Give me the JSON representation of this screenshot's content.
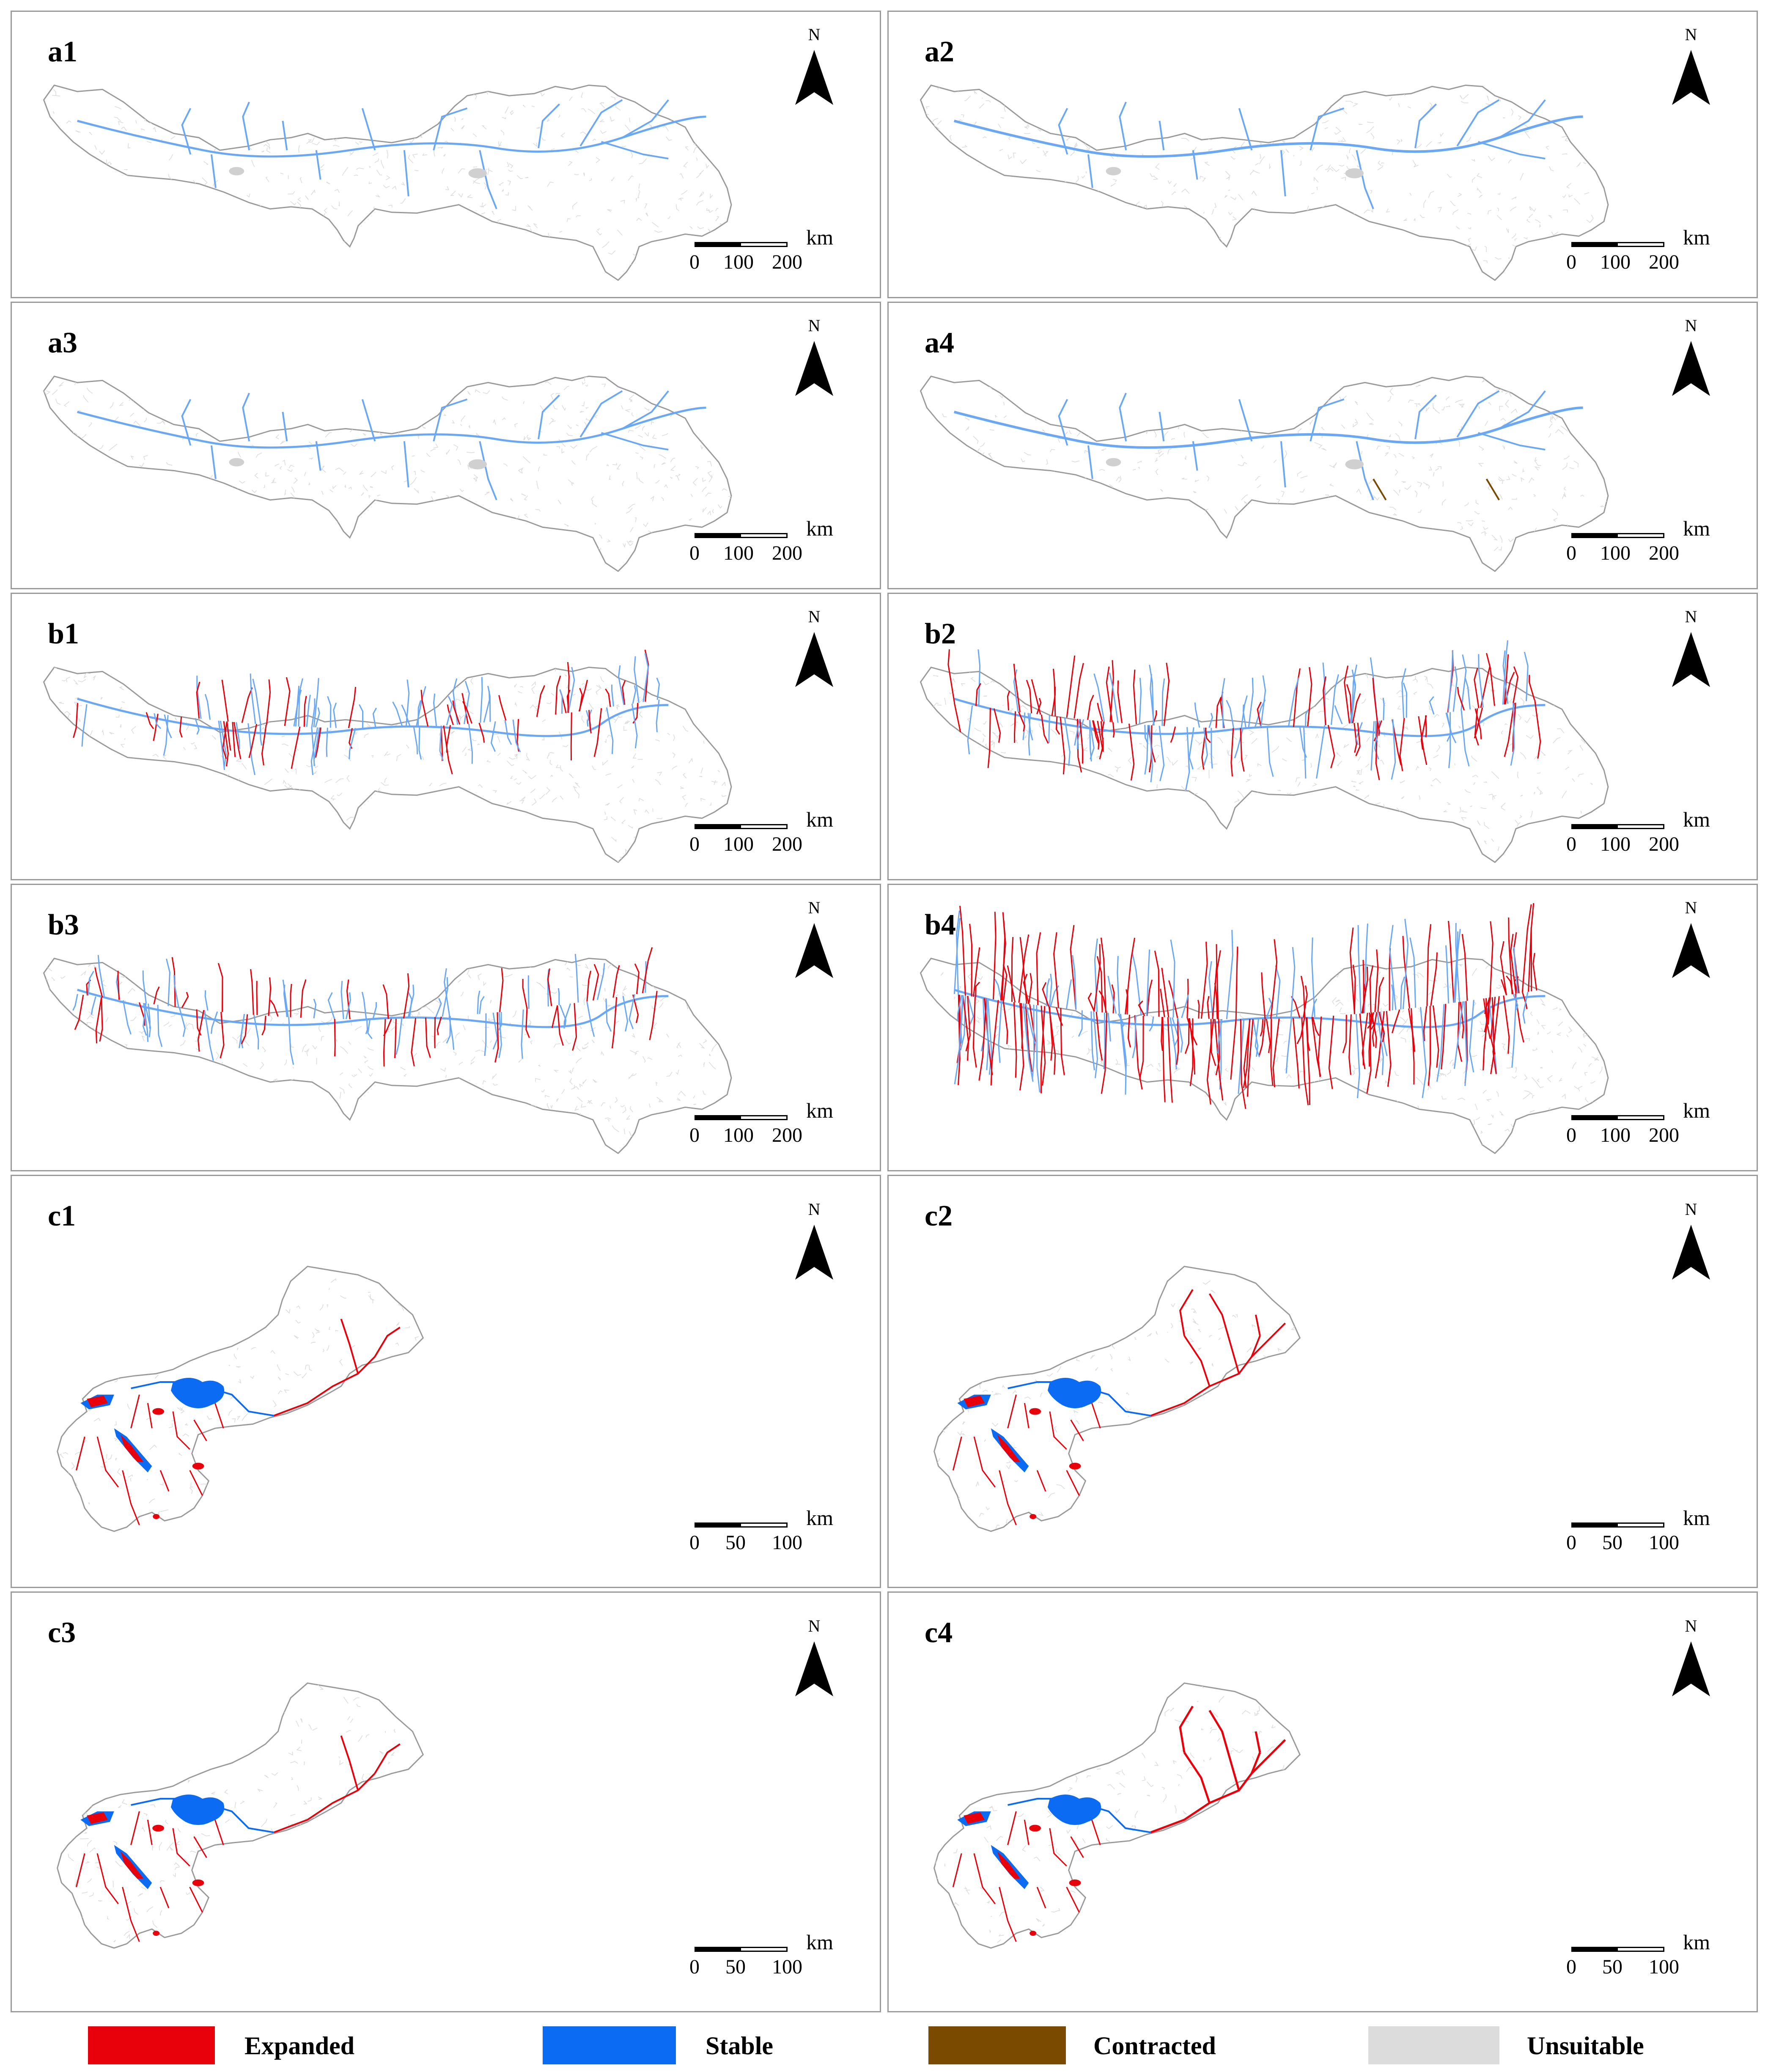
{
  "panels": [
    {
      "label": "a1"
    },
    {
      "label": "a2"
    },
    {
      "label": "a3"
    },
    {
      "label": "a4"
    },
    {
      "label": "b1"
    },
    {
      "label": "b2"
    },
    {
      "label": "b3"
    },
    {
      "label": "b4"
    },
    {
      "label": "c1"
    },
    {
      "label": "c2"
    },
    {
      "label": "c3"
    },
    {
      "label": "c4"
    }
  ],
  "north_label": "N",
  "scale_unit": "km",
  "scale_large": [
    "0",
    "100",
    "200"
  ],
  "scale_small": [
    "0",
    "50",
    "100"
  ],
  "legend": [
    {
      "label": "Expanded",
      "color": "#e8000b"
    },
    {
      "label": "Stable",
      "color": "#0b6bf2"
    },
    {
      "label": "Contracted",
      "color": "#7a4a00"
    },
    {
      "label": "Unsuitable",
      "color": "#dcdcdc"
    }
  ],
  "colors": {
    "expanded": "#e8000b",
    "stable": "#0b6bf2",
    "stable_light": "#6aa8f5",
    "contracted": "#7a4a00",
    "unsuitable": "#dcdcdc",
    "boundary": "#9a9a9a"
  }
}
